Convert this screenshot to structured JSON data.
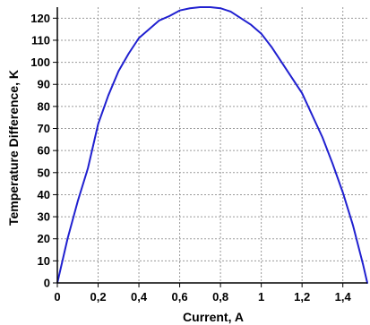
{
  "chart_data": {
    "type": "line",
    "title": "",
    "xlabel": "Current, A",
    "ylabel": "Temperature Difference, K",
    "xlim": [
      0,
      1.52
    ],
    "ylim": [
      0,
      125
    ],
    "x_ticks": [
      0,
      0.2,
      0.4,
      0.6,
      0.8,
      1,
      1.2,
      1.4
    ],
    "x_tick_labels": [
      "0",
      "0,2",
      "0,4",
      "0,6",
      "0,8",
      "1",
      "1,2",
      "1,4"
    ],
    "y_ticks": [
      0,
      10,
      20,
      30,
      40,
      50,
      60,
      70,
      80,
      90,
      100,
      110,
      120
    ],
    "y_tick_labels": [
      "0",
      "10",
      "20",
      "30",
      "40",
      "50",
      "60",
      "70",
      "80",
      "90",
      "100",
      "110",
      "120"
    ],
    "grid": true,
    "legend": "none",
    "series": [
      {
        "color": "#2020d0",
        "x": [
          0,
          0.05,
          0.1,
          0.15,
          0.2,
          0.25,
          0.3,
          0.35,
          0.4,
          0.45,
          0.5,
          0.55,
          0.6,
          0.65,
          0.7,
          0.72,
          0.75,
          0.8,
          0.85,
          0.9,
          0.95,
          1.0,
          1.05,
          1.1,
          1.15,
          1.2,
          1.25,
          1.3,
          1.35,
          1.4,
          1.45,
          1.5,
          1.52
        ],
        "y": [
          0,
          20,
          37,
          52,
          72,
          85,
          96,
          104,
          111,
          115,
          119,
          121,
          123.5,
          124.5,
          125,
          125,
          125,
          124.5,
          123,
          120,
          117,
          113,
          107,
          100,
          93,
          86,
          76,
          66,
          54,
          41,
          26,
          8,
          0
        ]
      }
    ]
  }
}
